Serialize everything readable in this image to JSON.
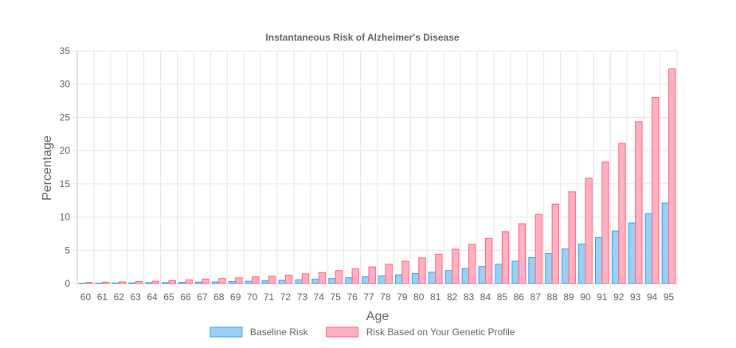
{
  "chart_data": {
    "type": "bar",
    "title": "Instantaneous Risk of Alzheimer's Disease",
    "xlabel": "Age",
    "ylabel": "Percentage",
    "ylim": [
      0,
      35
    ],
    "yticks": [
      "0",
      "5",
      "10",
      "15",
      "20",
      "25",
      "30",
      "35"
    ],
    "grid": true,
    "legend_position": "bottom",
    "categories": [
      "60",
      "61",
      "62",
      "63",
      "64",
      "65",
      "66",
      "67",
      "68",
      "69",
      "70",
      "71",
      "72",
      "73",
      "74",
      "75",
      "76",
      "77",
      "78",
      "79",
      "80",
      "81",
      "82",
      "83",
      "84",
      "85",
      "86",
      "87",
      "88",
      "89",
      "90",
      "91",
      "92",
      "93",
      "94",
      "95"
    ],
    "series": [
      {
        "name": "Baseline Risk",
        "color": "#9ad0f5",
        "border": "#36a2eb",
        "values": [
          0.05,
          0.07,
          0.08,
          0.1,
          0.12,
          0.14,
          0.17,
          0.2,
          0.24,
          0.29,
          0.34,
          0.4,
          0.48,
          0.56,
          0.65,
          0.75,
          0.87,
          1.0,
          1.15,
          1.3,
          1.5,
          1.7,
          1.95,
          2.25,
          2.55,
          2.9,
          3.35,
          3.9,
          4.5,
          5.2,
          5.95,
          6.9,
          7.9,
          9.1,
          10.5,
          12.1
        ]
      },
      {
        "name": "Risk Based on Your Genetic Profile",
        "color": "#ffb1c1",
        "border": "#ff6384",
        "values": [
          0.15,
          0.2,
          0.25,
          0.3,
          0.35,
          0.45,
          0.55,
          0.65,
          0.75,
          0.85,
          1.0,
          1.1,
          1.25,
          1.45,
          1.65,
          1.95,
          2.2,
          2.5,
          2.9,
          3.35,
          3.85,
          4.4,
          5.15,
          5.9,
          6.8,
          7.8,
          9.0,
          10.4,
          11.95,
          13.8,
          15.85,
          18.3,
          21.1,
          24.35,
          28.0,
          32.3
        ]
      }
    ]
  }
}
